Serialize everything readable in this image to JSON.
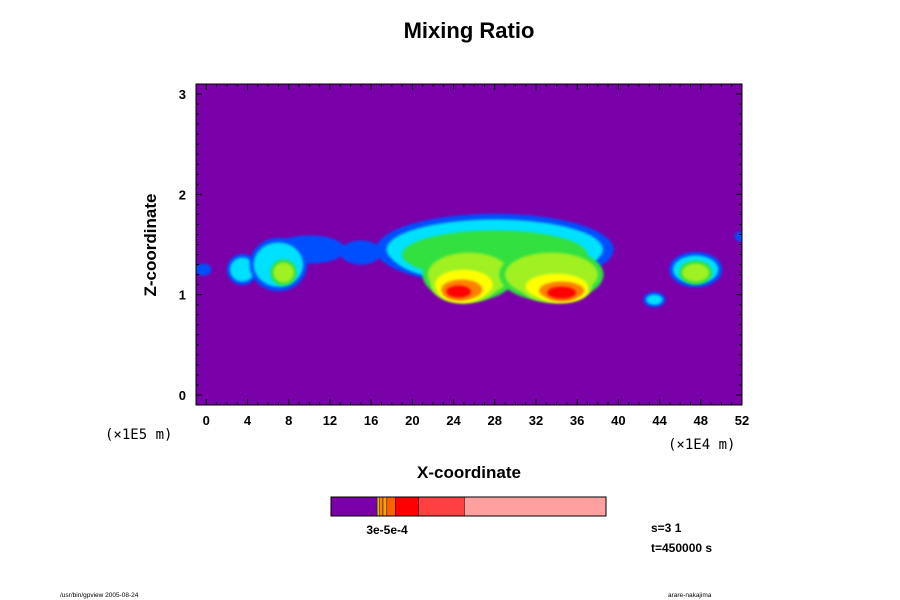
{
  "chart_data": {
    "type": "heatmap",
    "title": "Mixing Ratio",
    "xlabel": "X-coordinate",
    "ylabel": "Z-coordinate",
    "x_unit_label": "(×1E4 m)",
    "y_unit_label": "(×1E5 m)",
    "xlim": [
      -1,
      52
    ],
    "ylim": [
      -0.1,
      3.1
    ],
    "x_ticks": [
      0,
      4,
      8,
      12,
      16,
      20,
      24,
      28,
      32,
      36,
      40,
      44,
      48,
      52
    ],
    "y_ticks": [
      0,
      1,
      2,
      3
    ],
    "x_tick_labels": [
      "0",
      "4",
      "8",
      "12",
      "16",
      "20",
      "24",
      "28",
      "32",
      "36",
      "40",
      "44",
      "48",
      "52"
    ],
    "y_tick_labels": [
      "0",
      "1",
      "2",
      "3"
    ],
    "background_color": "#7a00aa",
    "colors": {
      "background": "#7a00aa",
      "blue": "#0050ff",
      "cyan": "#00e0ff",
      "green": "#30e040",
      "lime": "#a0f020",
      "yellow": "#ffff00",
      "orange": "#ff8000",
      "red": "#ff0000"
    },
    "field_blobs": [
      {
        "x": 3.5,
        "z": 1.25,
        "rx": 1.2,
        "rz": 0.12,
        "level": 1
      },
      {
        "x": 7.0,
        "z": 1.3,
        "rx": 2.4,
        "rz": 0.22,
        "level": 1
      },
      {
        "x": 7.5,
        "z": 1.22,
        "rx": 1.0,
        "rz": 0.1,
        "level": 3
      },
      {
        "x": 10.0,
        "z": 1.45,
        "rx": 3.5,
        "rz": 0.14,
        "level": 0
      },
      {
        "x": 15.0,
        "z": 1.42,
        "rx": 2.0,
        "rz": 0.12,
        "level": 0
      },
      {
        "x": 28.0,
        "z": 1.45,
        "rx": 10.5,
        "rz": 0.3,
        "level": 1
      },
      {
        "x": 28.0,
        "z": 1.4,
        "rx": 9.0,
        "rz": 0.24,
        "level": 2
      },
      {
        "x": 25.5,
        "z": 1.2,
        "rx": 4.0,
        "rz": 0.22,
        "level": 3
      },
      {
        "x": 33.5,
        "z": 1.2,
        "rx": 4.5,
        "rz": 0.22,
        "level": 3
      },
      {
        "x": 25.0,
        "z": 1.1,
        "rx": 2.8,
        "rz": 0.15,
        "level": 4
      },
      {
        "x": 34.0,
        "z": 1.08,
        "rx": 3.0,
        "rz": 0.13,
        "level": 4
      },
      {
        "x": 24.8,
        "z": 1.05,
        "rx": 2.0,
        "rz": 0.1,
        "level": 5
      },
      {
        "x": 34.5,
        "z": 1.04,
        "rx": 2.2,
        "rz": 0.09,
        "level": 5
      },
      {
        "x": 24.5,
        "z": 1.03,
        "rx": 1.2,
        "rz": 0.06,
        "level": 6
      },
      {
        "x": 34.5,
        "z": 1.02,
        "rx": 1.4,
        "rz": 0.06,
        "level": 6
      },
      {
        "x": 47.5,
        "z": 1.25,
        "rx": 2.2,
        "rz": 0.14,
        "level": 1
      },
      {
        "x": 47.5,
        "z": 1.22,
        "rx": 1.3,
        "rz": 0.09,
        "level": 3
      },
      {
        "x": 43.5,
        "z": 0.95,
        "rx": 0.8,
        "rz": 0.05,
        "level": 1
      },
      {
        "x": -0.3,
        "z": 1.25,
        "rx": 0.8,
        "rz": 0.06,
        "level": 0
      },
      {
        "x": 51.8,
        "z": 1.58,
        "rx": 0.5,
        "rz": 0.05,
        "level": 0
      }
    ]
  },
  "colorbar": {
    "tick_label": "3e-5e-4",
    "segments": [
      {
        "fraction": 0.168,
        "color": "#7a00aa"
      },
      {
        "fraction": 0.007,
        "color": "#ffff00"
      },
      {
        "fraction": 0.014,
        "color": "#ff8000"
      },
      {
        "fraction": 0.014,
        "color": "#ffa000"
      },
      {
        "fraction": 0.031,
        "color": "#ff6000"
      },
      {
        "fraction": 0.084,
        "color": "#ff0000"
      },
      {
        "fraction": 0.167,
        "color": "#ff4040"
      },
      {
        "fraction": 0.515,
        "color": "#ffa0a0"
      }
    ]
  },
  "info": {
    "step": "s=3 1",
    "time": "t=450000 s"
  },
  "footer": {
    "left": "/usr/bin/gpview 2005-08-24",
    "right": "arare-nakajima"
  }
}
